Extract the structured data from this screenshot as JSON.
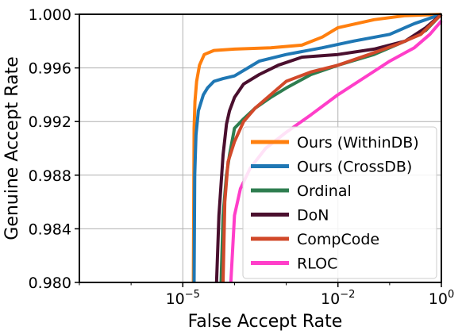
{
  "chart_data": {
    "type": "line",
    "title": "",
    "xlabel": "False Accept Rate",
    "ylabel": "Genuine Accept Rate",
    "xscale": "log",
    "xlim": [
      1e-07,
      1
    ],
    "ylim": [
      0.98,
      1.0
    ],
    "grid": true,
    "legend_position": "lower-right",
    "x_ticks": [
      {
        "value": 1e-05,
        "base": "10",
        "exp": "−5"
      },
      {
        "value": 0.01,
        "base": "10",
        "exp": "−2"
      },
      {
        "value": 1,
        "base": "10",
        "exp": "0"
      }
    ],
    "y_ticks": [
      {
        "value": 0.98,
        "label": "0.980"
      },
      {
        "value": 0.984,
        "label": "0.984"
      },
      {
        "value": 0.988,
        "label": "0.988"
      },
      {
        "value": 0.992,
        "label": "0.992"
      },
      {
        "value": 0.996,
        "label": "0.996"
      },
      {
        "value": 1.0,
        "label": "1.000"
      }
    ],
    "series": [
      {
        "name": "Ours (WithinDB)",
        "color": "#ff7f0e",
        "points": [
          [
            1.6e-05,
            0.98
          ],
          [
            1.65e-05,
            0.9915
          ],
          [
            1.72e-05,
            0.9935
          ],
          [
            1.85e-05,
            0.995
          ],
          [
            2.1e-05,
            0.9962
          ],
          [
            2.6e-05,
            0.997
          ],
          [
            4e-05,
            0.9973
          ],
          [
            0.0001,
            0.9974
          ],
          [
            0.0005,
            0.9975
          ],
          [
            0.002,
            0.9977
          ],
          [
            0.005,
            0.9983
          ],
          [
            0.01,
            0.999
          ],
          [
            0.05,
            0.9996
          ],
          [
            0.2,
            0.9999
          ],
          [
            1,
            1.0
          ]
        ]
      },
      {
        "name": "Ours (CrossDB)",
        "color": "#1f77b4",
        "points": [
          [
            1.65e-05,
            0.98
          ],
          [
            1.7e-05,
            0.988
          ],
          [
            1.8e-05,
            0.991
          ],
          [
            2e-05,
            0.9928
          ],
          [
            2.5e-05,
            0.994
          ],
          [
            3e-05,
            0.9945
          ],
          [
            4e-05,
            0.995
          ],
          [
            6e-05,
            0.9952
          ],
          [
            0.0001,
            0.9954
          ],
          [
            0.0003,
            0.9965
          ],
          [
            0.001,
            0.997
          ],
          [
            0.005,
            0.9975
          ],
          [
            0.02,
            0.998
          ],
          [
            0.1,
            0.9985
          ],
          [
            0.3,
            0.9993
          ],
          [
            1,
            1.0
          ]
        ]
      },
      {
        "name": "Ordinal",
        "color": "#2e7d4f",
        "points": [
          [
            5.5e-05,
            0.98
          ],
          [
            6e-05,
            0.985
          ],
          [
            7e-05,
            0.988
          ],
          [
            8e-05,
            0.9895
          ],
          [
            0.0001,
            0.9915
          ],
          [
            0.00015,
            0.9922
          ],
          [
            0.00025,
            0.993
          ],
          [
            0.0005,
            0.9938
          ],
          [
            0.001,
            0.9945
          ],
          [
            0.003,
            0.9955
          ],
          [
            0.01,
            0.9962
          ],
          [
            0.05,
            0.997
          ],
          [
            0.2,
            0.998
          ],
          [
            0.5,
            0.9988
          ],
          [
            1,
            1.0
          ]
        ]
      },
      {
        "name": "DoN",
        "color": "#4a0f2e",
        "points": [
          [
            4.5e-05,
            0.98
          ],
          [
            5e-05,
            0.985
          ],
          [
            6e-05,
            0.9895
          ],
          [
            7e-05,
            0.9918
          ],
          [
            8e-05,
            0.9928
          ],
          [
            0.0001,
            0.9938
          ],
          [
            0.00015,
            0.9948
          ],
          [
            0.0003,
            0.9955
          ],
          [
            0.0007,
            0.9962
          ],
          [
            0.002,
            0.9968
          ],
          [
            0.01,
            0.997
          ],
          [
            0.05,
            0.9974
          ],
          [
            0.2,
            0.998
          ],
          [
            0.5,
            0.999
          ],
          [
            1,
            1.0
          ]
        ]
      },
      {
        "name": "CompCode",
        "color": "#d1492a",
        "points": [
          [
            6e-05,
            0.98
          ],
          [
            6.5e-05,
            0.986
          ],
          [
            7.5e-05,
            0.989
          ],
          [
            0.0001,
            0.9905
          ],
          [
            0.00015,
            0.992
          ],
          [
            0.00025,
            0.993
          ],
          [
            0.0005,
            0.994
          ],
          [
            0.001,
            0.995
          ],
          [
            0.003,
            0.9957
          ],
          [
            0.01,
            0.9962
          ],
          [
            0.04,
            0.997
          ],
          [
            0.15,
            0.9978
          ],
          [
            0.4,
            0.9985
          ],
          [
            1,
            1.0
          ]
        ]
      },
      {
        "name": "RLOC",
        "color": "#ff3ec9",
        "points": [
          [
            8.5e-05,
            0.98
          ],
          [
            0.0001,
            0.985
          ],
          [
            0.00013,
            0.987
          ],
          [
            0.0002,
            0.9885
          ],
          [
            0.0004,
            0.99
          ],
          [
            0.001,
            0.9912
          ],
          [
            0.003,
            0.9925
          ],
          [
            0.01,
            0.994
          ],
          [
            0.04,
            0.9955
          ],
          [
            0.1,
            0.9965
          ],
          [
            0.3,
            0.9975
          ],
          [
            0.6,
            0.9985
          ],
          [
            1,
            0.9995
          ]
        ]
      }
    ]
  }
}
